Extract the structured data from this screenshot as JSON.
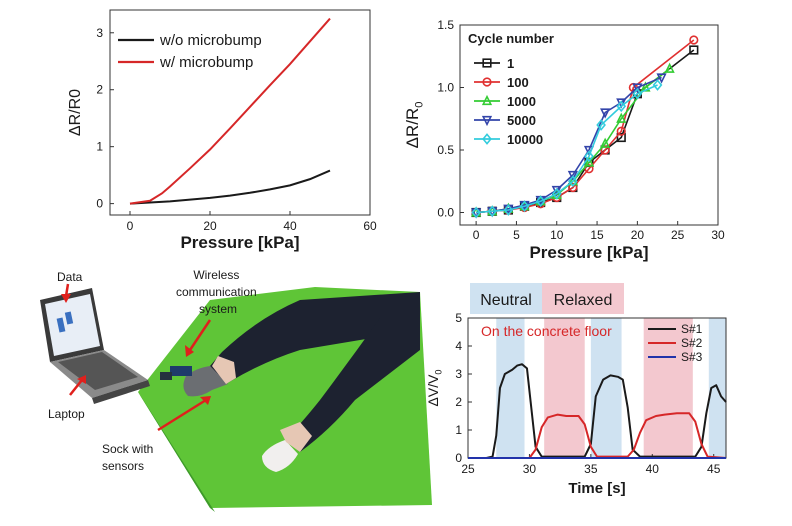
{
  "chart_data": [
    {
      "type": "line",
      "xlabel": "Pressure [kPa]",
      "ylabel": "ΔR/R0",
      "xlim": [
        -5,
        60
      ],
      "ylim": [
        -0.2,
        3.4
      ],
      "xticks": [
        0,
        20,
        40,
        60
      ],
      "yticks": [
        0,
        1,
        2,
        3
      ],
      "legend": "top-left",
      "series": [
        {
          "name": "w/o microbump",
          "color": "#1a1a1a",
          "x": [
            0,
            5,
            10,
            15,
            20,
            25,
            30,
            35,
            40,
            45,
            50
          ],
          "values": [
            0,
            0.02,
            0.04,
            0.07,
            0.1,
            0.14,
            0.19,
            0.25,
            0.32,
            0.43,
            0.58
          ]
        },
        {
          "name": "w/ microbump",
          "color": "#d62728",
          "x": [
            0,
            5,
            8,
            10,
            15,
            20,
            25,
            30,
            35,
            40,
            45,
            50
          ],
          "values": [
            0,
            0.05,
            0.18,
            0.3,
            0.62,
            0.95,
            1.32,
            1.7,
            2.08,
            2.45,
            2.85,
            3.25
          ]
        }
      ]
    },
    {
      "type": "line",
      "xlabel": "Pressure [kPa]",
      "ylabel": "ΔR/R0",
      "xlim": [
        -2,
        30
      ],
      "ylim": [
        -0.1,
        1.5
      ],
      "xticks": [
        0,
        5,
        10,
        15,
        20,
        25,
        30
      ],
      "yticks": [
        0.0,
        0.5,
        1.0,
        1.5
      ],
      "legend_title": "Cycle number",
      "legend": "top-left",
      "series": [
        {
          "name": "1",
          "color": "#1a1a1a",
          "marker": "square",
          "x": [
            0,
            2,
            4,
            6,
            8,
            10,
            12,
            14,
            16,
            18,
            20,
            27
          ],
          "values": [
            0,
            0.01,
            0.02,
            0.05,
            0.08,
            0.12,
            0.2,
            0.4,
            0.5,
            0.6,
            0.95,
            1.3
          ]
        },
        {
          "name": "100",
          "color": "#e03030",
          "marker": "circle",
          "x": [
            0,
            2,
            4,
            6,
            8,
            10,
            12,
            14,
            16,
            18,
            19.5,
            27
          ],
          "values": [
            0,
            0.01,
            0.02,
            0.04,
            0.07,
            0.12,
            0.2,
            0.35,
            0.5,
            0.65,
            1.0,
            1.38
          ]
        },
        {
          "name": "1000",
          "color": "#33cc33",
          "marker": "triangle-up",
          "x": [
            0,
            2,
            4,
            6,
            8,
            10,
            12,
            14,
            16,
            18,
            21,
            24
          ],
          "values": [
            0,
            0.01,
            0.03,
            0.05,
            0.09,
            0.14,
            0.25,
            0.4,
            0.55,
            0.75,
            1.0,
            1.15
          ]
        },
        {
          "name": "5000",
          "color": "#3344aa",
          "marker": "triangle-down",
          "x": [
            0,
            2,
            4,
            6,
            8,
            10,
            12,
            14,
            16,
            18,
            20,
            23
          ],
          "values": [
            0,
            0.01,
            0.03,
            0.06,
            0.1,
            0.18,
            0.3,
            0.5,
            0.8,
            0.88,
            1.0,
            1.08
          ]
        },
        {
          "name": "10000",
          "color": "#33ccdd",
          "marker": "diamond",
          "x": [
            0,
            2,
            4,
            6,
            8,
            10,
            12,
            14,
            15.5,
            18,
            20,
            22.5
          ],
          "values": [
            0,
            0.01,
            0.02,
            0.05,
            0.09,
            0.15,
            0.25,
            0.45,
            0.7,
            0.85,
            0.95,
            1.02
          ]
        }
      ]
    },
    {
      "type": "line",
      "xlabel": "Time [s]",
      "ylabel": "ΔV/V0",
      "xlim": [
        25,
        46
      ],
      "ylim": [
        0,
        5
      ],
      "xticks": [
        25,
        30,
        35,
        40,
        45
      ],
      "yticks": [
        0,
        1,
        2,
        3,
        4,
        5
      ],
      "legend": "top-right",
      "annotation": "On the concrete floor",
      "state_labels": {
        "neutral": "Neutral",
        "relaxed": "Relaxed",
        "neutral_color": "#cfe2f1",
        "relaxed_color": "#f3c8cf"
      },
      "bands": [
        {
          "state": "neutral",
          "x0": 27.3,
          "x1": 29.6
        },
        {
          "state": "relaxed",
          "x0": 31.2,
          "x1": 34.5
        },
        {
          "state": "neutral",
          "x0": 35.0,
          "x1": 37.5
        },
        {
          "state": "relaxed",
          "x0": 39.3,
          "x1": 43.3
        },
        {
          "state": "neutral",
          "x0": 44.6,
          "x1": 46.0
        }
      ],
      "series": [
        {
          "name": "S#1",
          "color": "#1a1a1a",
          "x": [
            25,
            26.5,
            27,
            27.3,
            27.6,
            28,
            28.6,
            29,
            29.4,
            29.8,
            30.1,
            30.5,
            31,
            34.5,
            35,
            35.4,
            36,
            36.6,
            37.2,
            37.6,
            38,
            38.4,
            39,
            43.5,
            44,
            44.4,
            44.8,
            45.2,
            45.6,
            46
          ],
          "values": [
            0,
            0,
            0.05,
            0.8,
            2.5,
            3.0,
            3.15,
            3.3,
            3.35,
            3.2,
            2.0,
            0.4,
            0.05,
            0.05,
            0.5,
            2.2,
            2.8,
            2.95,
            2.9,
            2.8,
            1.8,
            0.3,
            0.05,
            0.05,
            0.4,
            1.6,
            2.5,
            2.6,
            2.2,
            2.0
          ]
        },
        {
          "name": "S#2",
          "color": "#d62728",
          "x": [
            25,
            30,
            30.5,
            31,
            31.5,
            32.3,
            33,
            34,
            34.5,
            35,
            35.5,
            38,
            38.5,
            39,
            39.5,
            40.3,
            41,
            42,
            43,
            43.5,
            44,
            44.5,
            46
          ],
          "values": [
            0,
            0,
            0.3,
            1.1,
            1.45,
            1.55,
            1.5,
            1.5,
            1.2,
            0.4,
            0.05,
            0.05,
            0.3,
            0.9,
            1.35,
            1.5,
            1.55,
            1.6,
            1.6,
            1.3,
            0.5,
            0.05,
            0
          ]
        },
        {
          "name": "S#3",
          "color": "#2233aa",
          "x": [
            25,
            46
          ],
          "values": [
            0,
            0
          ]
        }
      ]
    }
  ],
  "photo_labels": {
    "data": "Data",
    "laptop": "Laptop",
    "wireless": [
      "Wireless",
      "communication",
      "system"
    ],
    "sock": [
      "Sock with",
      "sensors"
    ]
  }
}
